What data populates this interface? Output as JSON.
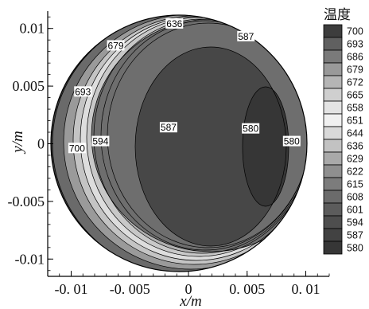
{
  "chart_data": {
    "type": "contour",
    "title": "",
    "xlabel": "x/m",
    "ylabel": "y/m",
    "xlim": [
      -0.012,
      0.012
    ],
    "ylim": [
      -0.0115,
      0.0115
    ],
    "x_ticks": [
      -0.01,
      -0.005,
      0,
      0.005,
      0.01
    ],
    "x_tick_labels": [
      "-0. 01",
      "-0. 005",
      "0",
      "0. 005",
      "0. 01"
    ],
    "y_ticks": [
      -0.01,
      -0.005,
      0,
      0.005,
      0.01
    ],
    "y_tick_labels": [
      "-0.01",
      "-0.005",
      "0",
      "0.005",
      "0.01"
    ],
    "legend": {
      "title": "温度",
      "position": "right",
      "levels": [
        700,
        693,
        686,
        679,
        672,
        665,
        658,
        651,
        644,
        636,
        629,
        622,
        615,
        608,
        601,
        594,
        587,
        580
      ],
      "labels": [
        "700",
        "693",
        "686",
        "679",
        "672",
        "665",
        "658",
        "651",
        "644",
        "636",
        "629",
        "622",
        "615",
        "608",
        "601",
        "594",
        "587",
        "580"
      ],
      "colors": [
        "#3d3d3d",
        "#606060",
        "#7a7a7a",
        "#999999",
        "#b5b5b5",
        "#cfcfcf",
        "#e3e3e3",
        "#f0f0f0",
        "#d9d9d9",
        "#c2c2c2",
        "#a9a9a9",
        "#8f8f8f",
        "#7c7c7c",
        "#6b6b6b",
        "#5c5c5c",
        "#4e4e4e",
        "#424242",
        "#363636"
      ]
    },
    "contour_labels": [
      {
        "text": "636",
        "x": -0.0012,
        "y": 0.0104
      },
      {
        "text": "587",
        "x": 0.0049,
        "y": 0.0093
      },
      {
        "text": "679",
        "x": -0.0062,
        "y": 0.0085
      },
      {
        "text": "693",
        "x": -0.009,
        "y": 0.0045
      },
      {
        "text": "587",
        "x": -0.0017,
        "y": 0.0014
      },
      {
        "text": "580",
        "x": 0.0053,
        "y": 0.0013
      },
      {
        "text": "580",
        "x": 0.0088,
        "y": 0.0002
      },
      {
        "text": "594",
        "x": -0.0075,
        "y": 0.0002
      },
      {
        "text": "700",
        "x": -0.0095,
        "y": -0.0004
      }
    ]
  }
}
